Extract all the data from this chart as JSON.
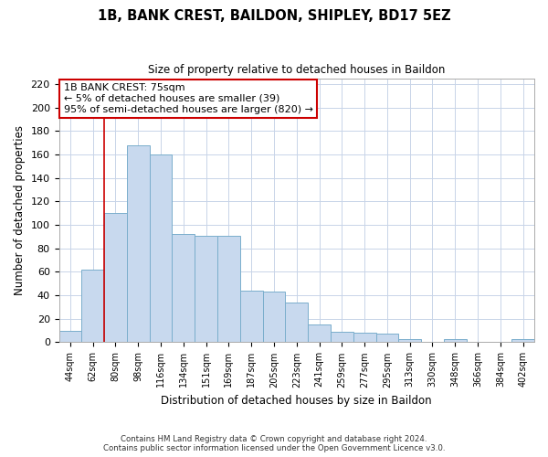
{
  "title": "1B, BANK CREST, BAILDON, SHIPLEY, BD17 5EZ",
  "subtitle": "Size of property relative to detached houses in Baildon",
  "xlabel": "Distribution of detached houses by size in Baildon",
  "ylabel": "Number of detached properties",
  "footer_line1": "Contains HM Land Registry data © Crown copyright and database right 2024.",
  "footer_line2": "Contains public sector information licensed under the Open Government Licence v3.0.",
  "bar_labels": [
    "44sqm",
    "62sqm",
    "80sqm",
    "98sqm",
    "116sqm",
    "134sqm",
    "151sqm",
    "169sqm",
    "187sqm",
    "205sqm",
    "223sqm",
    "241sqm",
    "259sqm",
    "277sqm",
    "295sqm",
    "313sqm",
    "330sqm",
    "348sqm",
    "366sqm",
    "384sqm",
    "402sqm"
  ],
  "bar_values": [
    10,
    62,
    110,
    168,
    160,
    92,
    91,
    91,
    44,
    43,
    34,
    15,
    9,
    8,
    7,
    3,
    0,
    3,
    0,
    0,
    3
  ],
  "bar_color": "#c8d9ee",
  "bar_edge_color": "#7aaecc",
  "highlight_line_color": "#cc0000",
  "annotation_line1": "1B BANK CREST: 75sqm",
  "annotation_line2": "← 5% of detached houses are smaller (39)",
  "annotation_line3": "95% of semi-detached houses are larger (820) →",
  "ylim": [
    0,
    225
  ],
  "yticks": [
    0,
    20,
    40,
    60,
    80,
    100,
    120,
    140,
    160,
    180,
    200,
    220
  ],
  "background_color": "#ffffff",
  "grid_color": "#c8d4e8"
}
